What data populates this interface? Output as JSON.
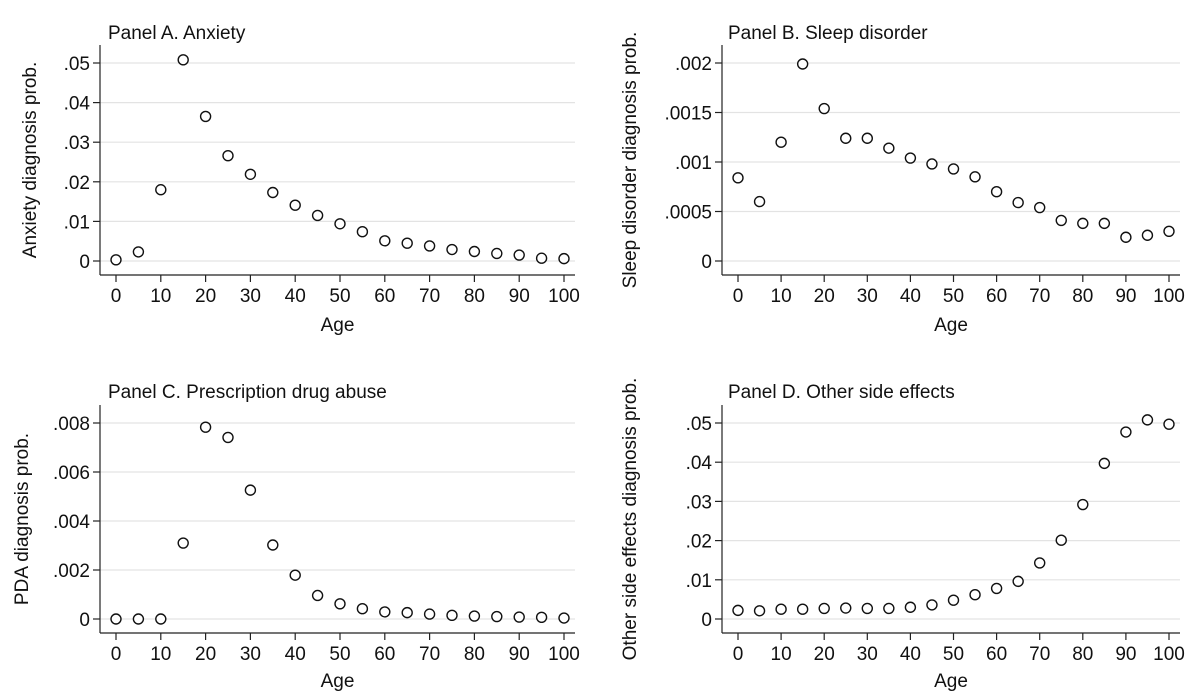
{
  "chart_data": [
    {
      "type": "scatter",
      "title": "Panel A. Anxiety",
      "xlabel": "Age",
      "ylabel": "Anxiety diagnosis prob.",
      "xlim": [
        0,
        100
      ],
      "ylim": [
        0,
        0.05
      ],
      "x_ticks": [
        0,
        10,
        20,
        30,
        40,
        50,
        60,
        70,
        80,
        90,
        100
      ],
      "y_ticks": [
        0,
        0.01,
        0.02,
        0.03,
        0.04,
        0.05
      ],
      "y_tick_labels": [
        "0",
        ".01",
        ".02",
        ".03",
        ".04",
        ".05"
      ],
      "grid": true,
      "x": [
        0,
        5,
        10,
        15,
        20,
        25,
        30,
        35,
        40,
        45,
        50,
        55,
        60,
        65,
        70,
        75,
        80,
        85,
        90,
        95,
        100
      ],
      "y": [
        0.0003,
        0.0023,
        0.018,
        0.0508,
        0.0365,
        0.0266,
        0.0219,
        0.0173,
        0.0141,
        0.0115,
        0.0094,
        0.0074,
        0.0051,
        0.0045,
        0.0038,
        0.0029,
        0.0024,
        0.0019,
        0.0015,
        0.0007,
        0.0006
      ]
    },
    {
      "type": "scatter",
      "title": "Panel B. Sleep disorder",
      "xlabel": "Age",
      "ylabel": "Sleep disorder diagnosis prob.",
      "xlim": [
        0,
        100
      ],
      "ylim": [
        0,
        0.002
      ],
      "x_ticks": [
        0,
        10,
        20,
        30,
        40,
        50,
        60,
        70,
        80,
        90,
        100
      ],
      "y_ticks": [
        0,
        0.0005,
        0.001,
        0.0015,
        0.002
      ],
      "y_tick_labels": [
        "0",
        ".0005",
        ".001",
        ".0015",
        ".002"
      ],
      "grid": true,
      "x": [
        0,
        5,
        10,
        15,
        20,
        25,
        30,
        35,
        40,
        45,
        50,
        55,
        60,
        65,
        70,
        75,
        80,
        85,
        90,
        95,
        100
      ],
      "y": [
        0.00084,
        0.0006,
        0.0012,
        0.00199,
        0.00154,
        0.00124,
        0.00124,
        0.00114,
        0.00104,
        0.00098,
        0.00093,
        0.00085,
        0.0007,
        0.00059,
        0.00054,
        0.00041,
        0.00038,
        0.00038,
        0.00024,
        0.00026,
        0.0003
      ]
    },
    {
      "type": "scatter",
      "title": "Panel C. Prescription drug abuse",
      "xlabel": "Age",
      "ylabel": "PDA diagnosis prob.",
      "xlim": [
        0,
        100
      ],
      "ylim": [
        0,
        0.008
      ],
      "x_ticks": [
        0,
        10,
        20,
        30,
        40,
        50,
        60,
        70,
        80,
        90,
        100
      ],
      "y_ticks": [
        0,
        0.002,
        0.004,
        0.006,
        0.008
      ],
      "y_tick_labels": [
        "0",
        ".002",
        ".004",
        ".006",
        ".008"
      ],
      "grid": true,
      "x": [
        0,
        5,
        10,
        15,
        20,
        25,
        30,
        35,
        40,
        45,
        50,
        55,
        60,
        65,
        70,
        75,
        80,
        85,
        90,
        95,
        100
      ],
      "y": [
        0.0,
        0.0,
        0.0,
        0.0031,
        0.00783,
        0.00741,
        0.00526,
        0.00302,
        0.00179,
        0.00096,
        0.00062,
        0.00042,
        0.00029,
        0.00026,
        0.0002,
        0.00015,
        0.00012,
        0.0001,
        8e-05,
        7e-05,
        4e-05
      ]
    },
    {
      "type": "scatter",
      "title": "Panel D. Other side effects",
      "xlabel": "Age",
      "ylabel": "Other side effects diagnosis prob.",
      "xlim": [
        0,
        100
      ],
      "ylim": [
        0,
        0.05
      ],
      "x_ticks": [
        0,
        10,
        20,
        30,
        40,
        50,
        60,
        70,
        80,
        90,
        100
      ],
      "y_ticks": [
        0,
        0.01,
        0.02,
        0.03,
        0.04,
        0.05
      ],
      "y_tick_labels": [
        "0",
        ".01",
        ".02",
        ".03",
        ".04",
        ".05"
      ],
      "grid": true,
      "x": [
        0,
        5,
        10,
        15,
        20,
        25,
        30,
        35,
        40,
        45,
        50,
        55,
        60,
        65,
        70,
        75,
        80,
        85,
        90,
        95,
        100
      ],
      "y": [
        0.0022,
        0.0021,
        0.0025,
        0.0025,
        0.0027,
        0.0028,
        0.0027,
        0.0027,
        0.003,
        0.0036,
        0.0048,
        0.0062,
        0.0078,
        0.0096,
        0.0143,
        0.0201,
        0.0292,
        0.0397,
        0.0477,
        0.0508,
        0.0497
      ]
    }
  ]
}
